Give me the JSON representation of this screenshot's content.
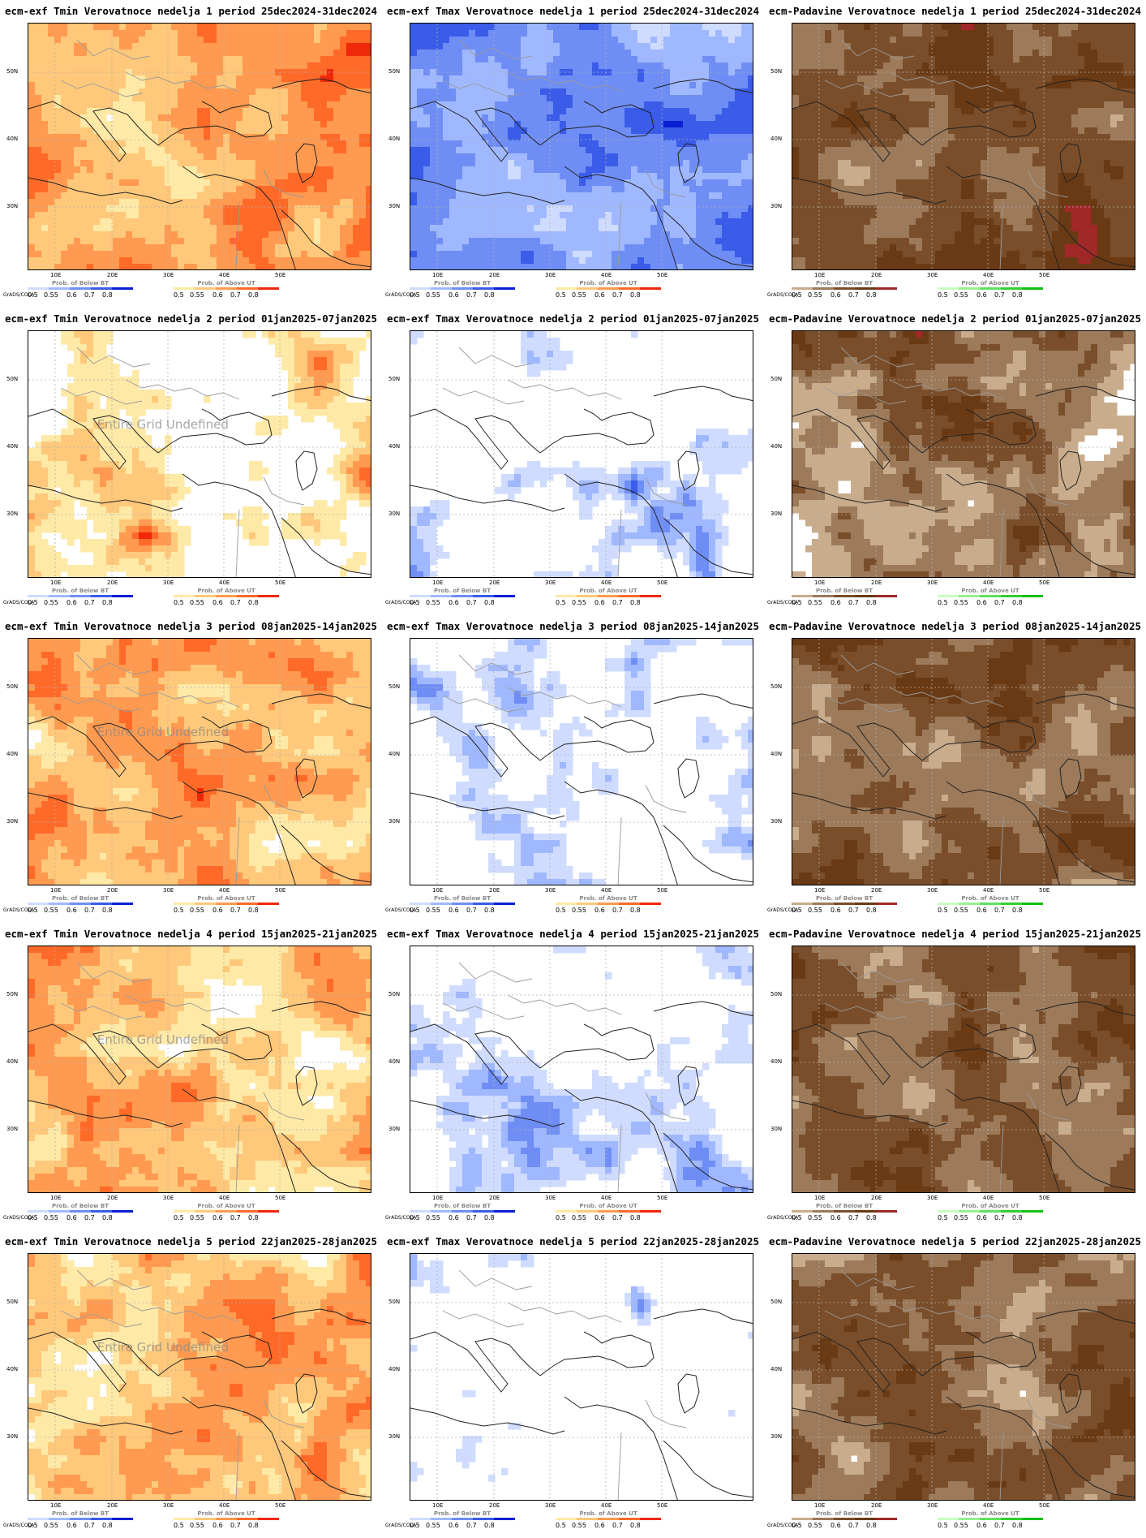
{
  "axes": {
    "lat_ticks": [
      "50N",
      "40N",
      "30N"
    ],
    "lon_ticks": [
      "10E",
      "20E",
      "30E",
      "40E",
      "50E"
    ]
  },
  "credit": "GrADS/COLA",
  "legend_ticks": [
    "0.5",
    "0.55",
    "0.6",
    "0.7",
    "0.8"
  ],
  "palettes": {
    "below_t": [
      "#cfdcff",
      "#a0b8ff",
      "#6f8ef5",
      "#3a5ce8",
      "#0a1ed2"
    ],
    "above_t": [
      "#ffe9a6",
      "#ffc87a",
      "#ff9a50",
      "#ff6a28",
      "#f0280a"
    ],
    "precip_dry": [
      "#c8ac8c",
      "#9c7a5a",
      "#7a4e2a",
      "#6a3a14",
      "#a02828"
    ],
    "precip_wet": [
      "#c8ffc0",
      "#98f090",
      "#60e060",
      "#30d030",
      "#10c010"
    ]
  },
  "panels": [
    {
      "id": "r1c1",
      "title": "ecm-exf Tmin Verovatnoce nedelja 1 period 25dec2024-31dec2024",
      "kind": "tmin",
      "legend_left": "Prob. of Below BT",
      "legend_right": "Prob. of Above UT",
      "overlay": "",
      "dominant": "above",
      "level": 0.9,
      "seed": 11
    },
    {
      "id": "r1c2",
      "title": "ecm-exf Tmax Verovatnoce nedelja 1 period 25dec2024-31dec2024",
      "kind": "tmax",
      "legend_left": "Prob. of Below BT",
      "legend_right": "Prob. of Above UT",
      "overlay": "",
      "dominant": "below",
      "level": 0.95,
      "seed": 12
    },
    {
      "id": "r1c3",
      "title": "ecm-Padavine Verovatnoce nedelja 1 period 25dec2024-31dec2024",
      "kind": "precip",
      "legend_left": "Prob. of Below BT",
      "legend_right": "Prob. of Above UT",
      "overlay": "",
      "dominant": "dry",
      "level": 0.95,
      "seed": 13
    },
    {
      "id": "r2c1",
      "title": "ecm-exf Tmin Verovatnoce nedelja 2 period 01jan2025-07jan2025",
      "kind": "tmin",
      "legend_left": "Prob. of Below BT",
      "legend_right": "Prob. of Above UT",
      "overlay": "Entire Grid Undefined",
      "dominant": "above",
      "level": 0.55,
      "seed": 21
    },
    {
      "id": "r2c2",
      "title": "ecm-exf Tmax Verovatnoce nedelja 2 period 01jan2025-07jan2025",
      "kind": "tmax",
      "legend_left": "Prob. of Below BT",
      "legend_right": "Prob. of Above UT",
      "overlay": "",
      "dominant": "below",
      "level": 0.4,
      "seed": 22
    },
    {
      "id": "r2c3",
      "title": "ecm-Padavine Verovatnoce nedelja 2 period 01jan2025-07jan2025",
      "kind": "precip",
      "legend_left": "Prob. of Below BT",
      "legend_right": "Prob. of Above UT",
      "overlay": "",
      "dominant": "dry",
      "level": 0.7,
      "seed": 23
    },
    {
      "id": "r3c1",
      "title": "ecm-exf Tmin Verovatnoce nedelja 3 period 08jan2025-14jan2025",
      "kind": "tmin",
      "legend_left": "Prob. of Below BT",
      "legend_right": "Prob. of Above UT",
      "overlay": "Entire Grid Undefined",
      "dominant": "above",
      "level": 0.75,
      "seed": 31
    },
    {
      "id": "r3c2",
      "title": "ecm-exf Tmax Verovatnoce nedelja 3 period 08jan2025-14jan2025",
      "kind": "tmax",
      "legend_left": "Prob. of Below BT",
      "legend_right": "Prob. of Above UT",
      "overlay": "",
      "dominant": "below",
      "level": 0.45,
      "seed": 32
    },
    {
      "id": "r3c3",
      "title": "ecm-Padavine Verovatnoce nedelja 3 period 08jan2025-14jan2025",
      "kind": "precip",
      "legend_left": "Prob. of Below BT",
      "legend_right": "Prob. of Above UT",
      "overlay": "",
      "dominant": "dry",
      "level": 0.85,
      "seed": 33
    },
    {
      "id": "r4c1",
      "title": "ecm-exf Tmin Verovatnoce nedelja 4 period 15jan2025-21jan2025",
      "kind": "tmin",
      "legend_left": "Prob. of Below BT",
      "legend_right": "Prob. of Above UT",
      "overlay": "Entire Grid Undefined",
      "dominant": "above",
      "level": 0.7,
      "seed": 41
    },
    {
      "id": "r4c2",
      "title": "ecm-exf Tmax Verovatnoce nedelja 4 period 15jan2025-21jan2025",
      "kind": "tmax",
      "legend_left": "Prob. of Below BT",
      "legend_right": "Prob. of Above UT",
      "overlay": "",
      "dominant": "below",
      "level": 0.45,
      "seed": 42
    },
    {
      "id": "r4c3",
      "title": "ecm-Padavine Verovatnoce nedelja 4 period 15jan2025-21jan2025",
      "kind": "precip",
      "legend_left": "Prob. of Below BT",
      "legend_right": "Prob. of Above UT",
      "overlay": "",
      "dominant": "dry",
      "level": 0.85,
      "seed": 43
    },
    {
      "id": "r5c1",
      "title": "ecm-exf Tmin Verovatnoce nedelja 5 period 22jan2025-28jan2025",
      "kind": "tmin",
      "legend_left": "Prob. of Below BT",
      "legend_right": "Prob. of Above UT",
      "overlay": "Entire Grid Undefined",
      "dominant": "above",
      "level": 0.7,
      "seed": 51
    },
    {
      "id": "r5c2",
      "title": "ecm-exf Tmax Verovatnoce nedelja 5 period 22jan2025-28jan2025",
      "kind": "tmax",
      "legend_left": "Prob. of Below BT",
      "legend_right": "Prob. of Above UT",
      "overlay": "",
      "dominant": "below",
      "level": 0.3,
      "seed": 52
    },
    {
      "id": "r5c3",
      "title": "ecm-Padavine Verovatnoce nedelja 5 period 22jan2025-28jan2025",
      "kind": "precip",
      "legend_left": "Prob. of Below BT",
      "legend_right": "Prob. of Above UT",
      "overlay": "",
      "dominant": "dry",
      "level": 0.85,
      "seed": 53
    }
  ]
}
